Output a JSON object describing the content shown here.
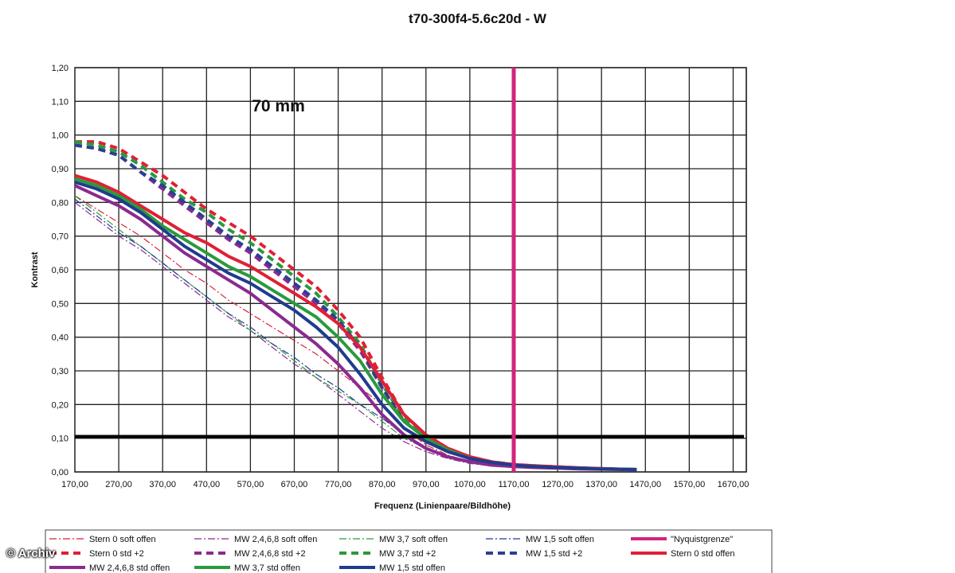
{
  "title": "t70-300f4-5.6c20d - W",
  "watermark": "© Archiv",
  "chart_data": {
    "type": "line",
    "title": "t70-300f4-5.6c20d - W",
    "xlabel": "Frequenz (Linienpaare/Bildhöhe)",
    "ylabel": "Kontrast",
    "xlim": [
      170,
      1700
    ],
    "ylim": [
      0,
      1.2
    ],
    "x_ticks": [
      "170,00",
      "270,00",
      "370,00",
      "470,00",
      "570,00",
      "670,00",
      "770,00",
      "870,00",
      "970,00",
      "1070,00",
      "1170,00",
      "1270,00",
      "1370,00",
      "1470,00",
      "1570,00",
      "1670,00"
    ],
    "y_ticks": [
      "0,00",
      "0,10",
      "0,20",
      "0,30",
      "0,40",
      "0,50",
      "0,60",
      "0,70",
      "0,80",
      "0,90",
      "1,00",
      "1,10",
      "1,20"
    ],
    "grid": true,
    "legend_position": "bottom",
    "annotation": "70 mm",
    "x": [
      170,
      220,
      270,
      320,
      370,
      420,
      470,
      520,
      570,
      620,
      670,
      720,
      770,
      820,
      870,
      920,
      970,
      1020,
      1070,
      1120,
      1170,
      1220,
      1270,
      1320,
      1370,
      1420,
      1450
    ],
    "series": [
      {
        "name": "Stern 0 soft offen",
        "color": "#d8203a",
        "style": "dashdot-thin",
        "values": [
          0.82,
          0.78,
          0.74,
          0.7,
          0.65,
          0.6,
          0.56,
          0.51,
          0.47,
          0.43,
          0.39,
          0.35,
          0.3,
          0.25,
          0.2,
          0.13,
          0.08,
          0.05,
          0.03,
          0.02,
          0.018,
          0.014,
          0.011,
          0.009,
          0.007,
          0.006,
          0.005
        ]
      },
      {
        "name": "MW 2,4,6,8 soft offen",
        "color": "#8b2a8e",
        "style": "dashdot-thin",
        "values": [
          0.8,
          0.75,
          0.7,
          0.66,
          0.61,
          0.56,
          0.51,
          0.46,
          0.42,
          0.37,
          0.32,
          0.28,
          0.23,
          0.18,
          0.13,
          0.09,
          0.06,
          0.04,
          0.025,
          0.018,
          0.015,
          0.012,
          0.01,
          0.008,
          0.006,
          0.005,
          0.005
        ]
      },
      {
        "name": "MW 3,7 soft offen",
        "color": "#2a9a3c",
        "style": "dashdot-thin",
        "values": [
          0.82,
          0.77,
          0.72,
          0.67,
          0.62,
          0.57,
          0.52,
          0.47,
          0.42,
          0.38,
          0.33,
          0.28,
          0.24,
          0.2,
          0.15,
          0.1,
          0.07,
          0.045,
          0.03,
          0.02,
          0.016,
          0.013,
          0.01,
          0.008,
          0.007,
          0.006,
          0.005
        ]
      },
      {
        "name": "MW 1,5 soft offen",
        "color": "#1f3c8e",
        "style": "dashdot-thin",
        "values": [
          0.81,
          0.76,
          0.71,
          0.67,
          0.62,
          0.57,
          0.52,
          0.47,
          0.43,
          0.38,
          0.34,
          0.29,
          0.25,
          0.2,
          0.16,
          0.11,
          0.07,
          0.045,
          0.03,
          0.02,
          0.016,
          0.013,
          0.01,
          0.008,
          0.007,
          0.006,
          0.005
        ]
      },
      {
        "name": "\"Nyquistgrenze\"",
        "color": "#d0257f",
        "style": "vline",
        "x": 1170
      },
      {
        "name": "Stern 0 std +2",
        "color": "#e02035",
        "style": "dash-thick",
        "values": [
          0.98,
          0.98,
          0.96,
          0.92,
          0.88,
          0.83,
          0.78,
          0.74,
          0.7,
          0.65,
          0.6,
          0.55,
          0.48,
          0.4,
          0.28,
          0.17,
          0.11,
          0.07,
          0.045,
          0.03,
          0.022,
          0.018,
          0.015,
          0.012,
          0.01,
          0.008,
          0.007
        ]
      },
      {
        "name": "MW 2,4,6,8 std +2",
        "color": "#8b2a8e",
        "style": "dash-thick",
        "values": [
          0.97,
          0.96,
          0.94,
          0.89,
          0.84,
          0.79,
          0.74,
          0.69,
          0.65,
          0.6,
          0.55,
          0.5,
          0.44,
          0.36,
          0.25,
          0.15,
          0.1,
          0.065,
          0.04,
          0.028,
          0.02,
          0.016,
          0.013,
          0.011,
          0.009,
          0.008,
          0.007
        ]
      },
      {
        "name": "MW 3,7 std +2",
        "color": "#2a9a3c",
        "style": "dash-thick",
        "values": [
          0.98,
          0.97,
          0.95,
          0.91,
          0.86,
          0.81,
          0.77,
          0.72,
          0.68,
          0.63,
          0.58,
          0.53,
          0.46,
          0.38,
          0.26,
          0.16,
          0.1,
          0.065,
          0.04,
          0.028,
          0.02,
          0.016,
          0.013,
          0.011,
          0.009,
          0.008,
          0.007
        ]
      },
      {
        "name": "MW 1,5 std +2",
        "color": "#2a3f95",
        "style": "dash-thick",
        "values": [
          0.97,
          0.96,
          0.94,
          0.89,
          0.85,
          0.8,
          0.75,
          0.7,
          0.66,
          0.61,
          0.56,
          0.51,
          0.45,
          0.37,
          0.25,
          0.15,
          0.1,
          0.065,
          0.04,
          0.028,
          0.02,
          0.016,
          0.013,
          0.011,
          0.009,
          0.008,
          0.007
        ]
      },
      {
        "name": "Stern 0 std offen",
        "color": "#e02035",
        "style": "solid-thick",
        "values": [
          0.88,
          0.86,
          0.83,
          0.79,
          0.75,
          0.71,
          0.68,
          0.64,
          0.61,
          0.57,
          0.53,
          0.49,
          0.44,
          0.37,
          0.27,
          0.17,
          0.11,
          0.07,
          0.045,
          0.03,
          0.022,
          0.018,
          0.015,
          0.012,
          0.01,
          0.008,
          0.007
        ]
      },
      {
        "name": "MW 2,4,6,8 std offen",
        "color": "#8b2a8e",
        "style": "solid-thick",
        "values": [
          0.85,
          0.82,
          0.79,
          0.75,
          0.7,
          0.65,
          0.61,
          0.57,
          0.53,
          0.48,
          0.43,
          0.38,
          0.32,
          0.25,
          0.17,
          0.11,
          0.07,
          0.045,
          0.03,
          0.02,
          0.016,
          0.013,
          0.011,
          0.009,
          0.008,
          0.007,
          0.006
        ]
      },
      {
        "name": "MW 3,7 std offen",
        "color": "#2a9a3c",
        "style": "solid-thick",
        "values": [
          0.87,
          0.85,
          0.82,
          0.78,
          0.73,
          0.69,
          0.65,
          0.61,
          0.58,
          0.54,
          0.5,
          0.46,
          0.4,
          0.33,
          0.23,
          0.15,
          0.1,
          0.065,
          0.04,
          0.028,
          0.02,
          0.016,
          0.013,
          0.011,
          0.009,
          0.008,
          0.007
        ]
      },
      {
        "name": "MW 1,5 std offen",
        "color": "#1f3c8e",
        "style": "solid-thick",
        "values": [
          0.86,
          0.84,
          0.81,
          0.77,
          0.72,
          0.67,
          0.63,
          0.59,
          0.56,
          0.52,
          0.48,
          0.43,
          0.37,
          0.29,
          0.2,
          0.13,
          0.09,
          0.06,
          0.04,
          0.028,
          0.02,
          0.016,
          0.013,
          0.011,
          0.009,
          0.008,
          0.007
        ]
      }
    ],
    "reference_lines": [
      {
        "axis": "y",
        "value": 0.105,
        "color": "#000000"
      },
      {
        "axis": "x",
        "value": 1170,
        "color": "#d0257f"
      }
    ]
  }
}
